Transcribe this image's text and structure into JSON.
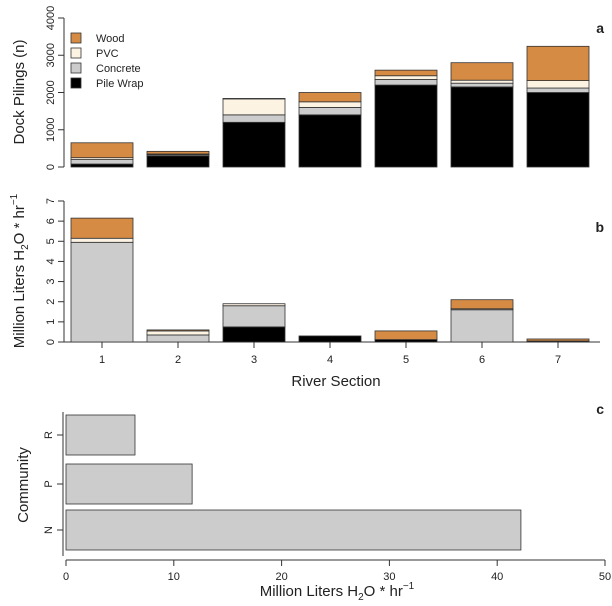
{
  "chart_data": [
    {
      "panel": "a",
      "type": "bar",
      "stacked": true,
      "ylabel": "Dock Pilings (n)",
      "xlabel": "",
      "ylim": [
        0,
        4000
      ],
      "yticks": [
        "0",
        "1000",
        "2000",
        "3000",
        "4000"
      ],
      "categories": [
        "1",
        "2",
        "3",
        "4",
        "5",
        "6",
        "7"
      ],
      "legend": "top-left",
      "series": [
        {
          "name": "Pile Wrap",
          "color": "#000000",
          "values": [
            80,
            300,
            1200,
            1400,
            2200,
            2150,
            2000
          ]
        },
        {
          "name": "Concrete",
          "color": "#cccccc",
          "values": [
            120,
            30,
            200,
            200,
            150,
            100,
            120
          ]
        },
        {
          "name": "PVC",
          "color": "#fdf3e3",
          "values": [
            50,
            20,
            430,
            150,
            100,
            80,
            200
          ]
        },
        {
          "name": "Wood",
          "color": "#d68b45",
          "values": [
            400,
            70,
            10,
            250,
            150,
            470,
            920
          ]
        }
      ]
    },
    {
      "panel": "b",
      "type": "bar",
      "stacked": true,
      "ylabel_main": "Million Liters H",
      "ylabel_sub": "2",
      "ylabel_mid": "O * hr",
      "ylabel_sup": "−1",
      "xlabel": "River Section",
      "ylim": [
        0,
        7
      ],
      "yticks": [
        "0",
        "1",
        "2",
        "3",
        "4",
        "5",
        "6",
        "7"
      ],
      "categories": [
        "1",
        "2",
        "3",
        "4",
        "5",
        "6",
        "7"
      ],
      "series": [
        {
          "name": "Pile Wrap",
          "color": "#000000",
          "values": [
            0,
            0,
            0.75,
            0.3,
            0.12,
            0,
            0.05
          ]
        },
        {
          "name": "Concrete",
          "color": "#cccccc",
          "values": [
            4.95,
            0.35,
            1.05,
            0,
            0,
            1.6,
            0
          ]
        },
        {
          "name": "PVC",
          "color": "#fdf3e3",
          "values": [
            0.2,
            0.2,
            0.1,
            0,
            0,
            0.05,
            0
          ]
        },
        {
          "name": "Wood",
          "color": "#d68b45",
          "values": [
            1.0,
            0.05,
            0,
            0,
            0.43,
            0.45,
            0.1
          ]
        }
      ]
    },
    {
      "panel": "c",
      "type": "bar",
      "orientation": "horizontal",
      "ylabel": "Community",
      "xlabel_main": "Million Liters H",
      "xlabel_sub": "2",
      "xlabel_mid": "O * hr",
      "xlabel_sup": "−1",
      "xlim": [
        0,
        50
      ],
      "xticks": [
        "0",
        "10",
        "20",
        "30",
        "40",
        "50"
      ],
      "categories": [
        "N",
        "P",
        "R"
      ],
      "values": [
        42.2,
        11.7,
        6.4
      ],
      "color": "#cccccc"
    }
  ]
}
